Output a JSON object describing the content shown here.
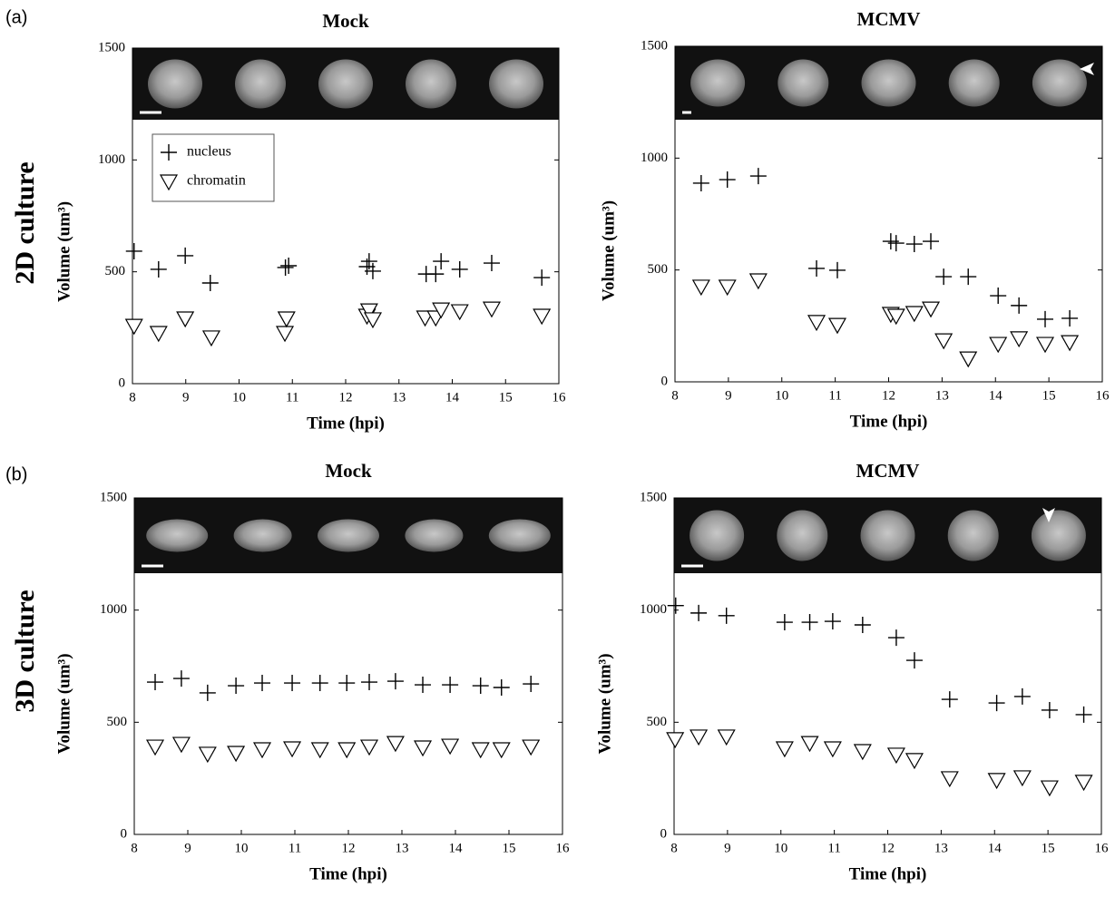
{
  "figure": {
    "panels": [
      {
        "label": "(a)",
        "row_title": "2D culture"
      },
      {
        "label": "(b)",
        "row_title": "3D culture"
      }
    ]
  },
  "chart_data": [
    {
      "type": "scatter",
      "title": "Mock",
      "xlabel": "Time (hpi)",
      "ylabel": "Volume (um³)",
      "xlim": [
        8,
        16
      ],
      "ylim": [
        0,
        1500
      ],
      "xticks": [
        8,
        9,
        10,
        11,
        12,
        13,
        14,
        15,
        16
      ],
      "yticks": [
        0,
        500,
        1000,
        1500
      ],
      "legend": true,
      "grid": false,
      "series": [
        {
          "name": "nucleus",
          "marker": "plus",
          "color": "#000000",
          "x": [
            8.03,
            8.49,
            8.99,
            9.46,
            10.87,
            10.93,
            12.4,
            12.44,
            12.51,
            13.51,
            13.69,
            13.79,
            14.14,
            14.74,
            15.68
          ],
          "values": [
            592,
            511,
            572,
            450,
            519,
            527,
            523,
            547,
            503,
            490,
            490,
            547,
            511,
            539,
            474
          ]
        },
        {
          "name": "chromatin",
          "marker": "triangle-down",
          "color": "#000000",
          "x": [
            8.03,
            8.49,
            8.99,
            9.48,
            10.86,
            10.89,
            12.4,
            12.44,
            12.51,
            13.49,
            13.69,
            13.79,
            14.14,
            14.74,
            15.68
          ],
          "values": [
            259,
            227,
            292,
            207,
            227,
            292,
            304,
            328,
            288,
            296,
            296,
            332,
            324,
            336,
            304
          ]
        }
      ]
    },
    {
      "type": "scatter",
      "title": "MCMV",
      "xlabel": "Time (hpi)",
      "ylabel": "Volume (um³)",
      "xlim": [
        8,
        16
      ],
      "ylim": [
        0,
        1500
      ],
      "xticks": [
        8,
        9,
        10,
        11,
        12,
        13,
        14,
        15,
        16
      ],
      "yticks": [
        0,
        500,
        1000,
        1500
      ],
      "legend": false,
      "grid": false,
      "series": [
        {
          "marker": "plus",
          "color": "#000000",
          "x": [
            8.49,
            8.98,
            9.56,
            10.65,
            11.04,
            12.04,
            12.14,
            12.48,
            12.79,
            13.03,
            13.49,
            14.05,
            14.44,
            14.93,
            15.39
          ],
          "values": [
            888,
            904,
            920,
            507,
            499,
            628,
            620,
            616,
            628,
            470,
            470,
            385,
            341,
            280,
            284
          ]
        },
        {
          "marker": "triangle-down",
          "color": "#000000",
          "x": [
            8.49,
            8.98,
            9.56,
            10.65,
            11.04,
            12.04,
            12.14,
            12.48,
            12.79,
            13.03,
            13.49,
            14.05,
            14.44,
            14.93,
            15.39
          ],
          "values": [
            426,
            426,
            454,
            268,
            255,
            304,
            296,
            308,
            328,
            186,
            105,
            170,
            195,
            170,
            178
          ]
        }
      ]
    },
    {
      "type": "scatter",
      "title": "Mock",
      "xlabel": "Time (hpi)",
      "ylabel": "Volume (um³)",
      "xlim": [
        8,
        16
      ],
      "ylim": [
        0,
        1500
      ],
      "xticks": [
        8,
        9,
        10,
        11,
        12,
        13,
        14,
        15,
        16
      ],
      "yticks": [
        0,
        500,
        1000,
        1500
      ],
      "legend": false,
      "grid": false,
      "series": [
        {
          "marker": "plus",
          "color": "#000000",
          "x": [
            8.39,
            8.88,
            9.37,
            9.9,
            10.39,
            10.95,
            11.47,
            11.97,
            12.39,
            12.88,
            13.39,
            13.9,
            14.47,
            14.86,
            15.41
          ],
          "values": [
            679,
            695,
            631,
            663,
            675,
            675,
            675,
            675,
            679,
            683,
            667,
            667,
            663,
            655,
            671
          ]
        },
        {
          "marker": "triangle-down",
          "color": "#000000",
          "x": [
            8.39,
            8.88,
            9.37,
            9.9,
            10.39,
            10.95,
            11.47,
            11.97,
            12.39,
            12.88,
            13.39,
            13.9,
            14.47,
            14.86,
            15.41
          ],
          "values": [
            392,
            404,
            360,
            364,
            380,
            384,
            380,
            380,
            392,
            408,
            388,
            396,
            380,
            380,
            392
          ]
        }
      ]
    },
    {
      "type": "scatter",
      "title": "MCMV",
      "xlabel": "Time (hpi)",
      "ylabel": "Volume (um³)",
      "xlim": [
        8,
        16
      ],
      "ylim": [
        0,
        1500
      ],
      "xticks": [
        8,
        9,
        10,
        11,
        12,
        13,
        14,
        15,
        16
      ],
      "yticks": [
        0,
        500,
        1000,
        1500
      ],
      "legend": false,
      "grid": false,
      "series": [
        {
          "marker": "plus",
          "color": "#000000",
          "x": [
            8.03,
            8.46,
            8.98,
            10.07,
            10.54,
            10.97,
            11.53,
            12.16,
            12.5,
            13.16,
            14.04,
            14.52,
            15.03,
            15.67
          ],
          "values": [
            1020,
            987,
            975,
            946,
            946,
            950,
            934,
            877,
            776,
            602,
            586,
            615,
            554,
            534
          ]
        },
        {
          "marker": "triangle-down",
          "color": "#000000",
          "x": [
            8.02,
            8.46,
            8.98,
            10.07,
            10.54,
            10.97,
            11.53,
            12.16,
            12.5,
            13.16,
            14.04,
            14.52,
            15.03,
            15.67
          ],
          "values": [
            425,
            437,
            437,
            384,
            408,
            384,
            372,
            356,
            332,
            251,
            243,
            255,
            210,
            235
          ]
        }
      ]
    }
  ]
}
